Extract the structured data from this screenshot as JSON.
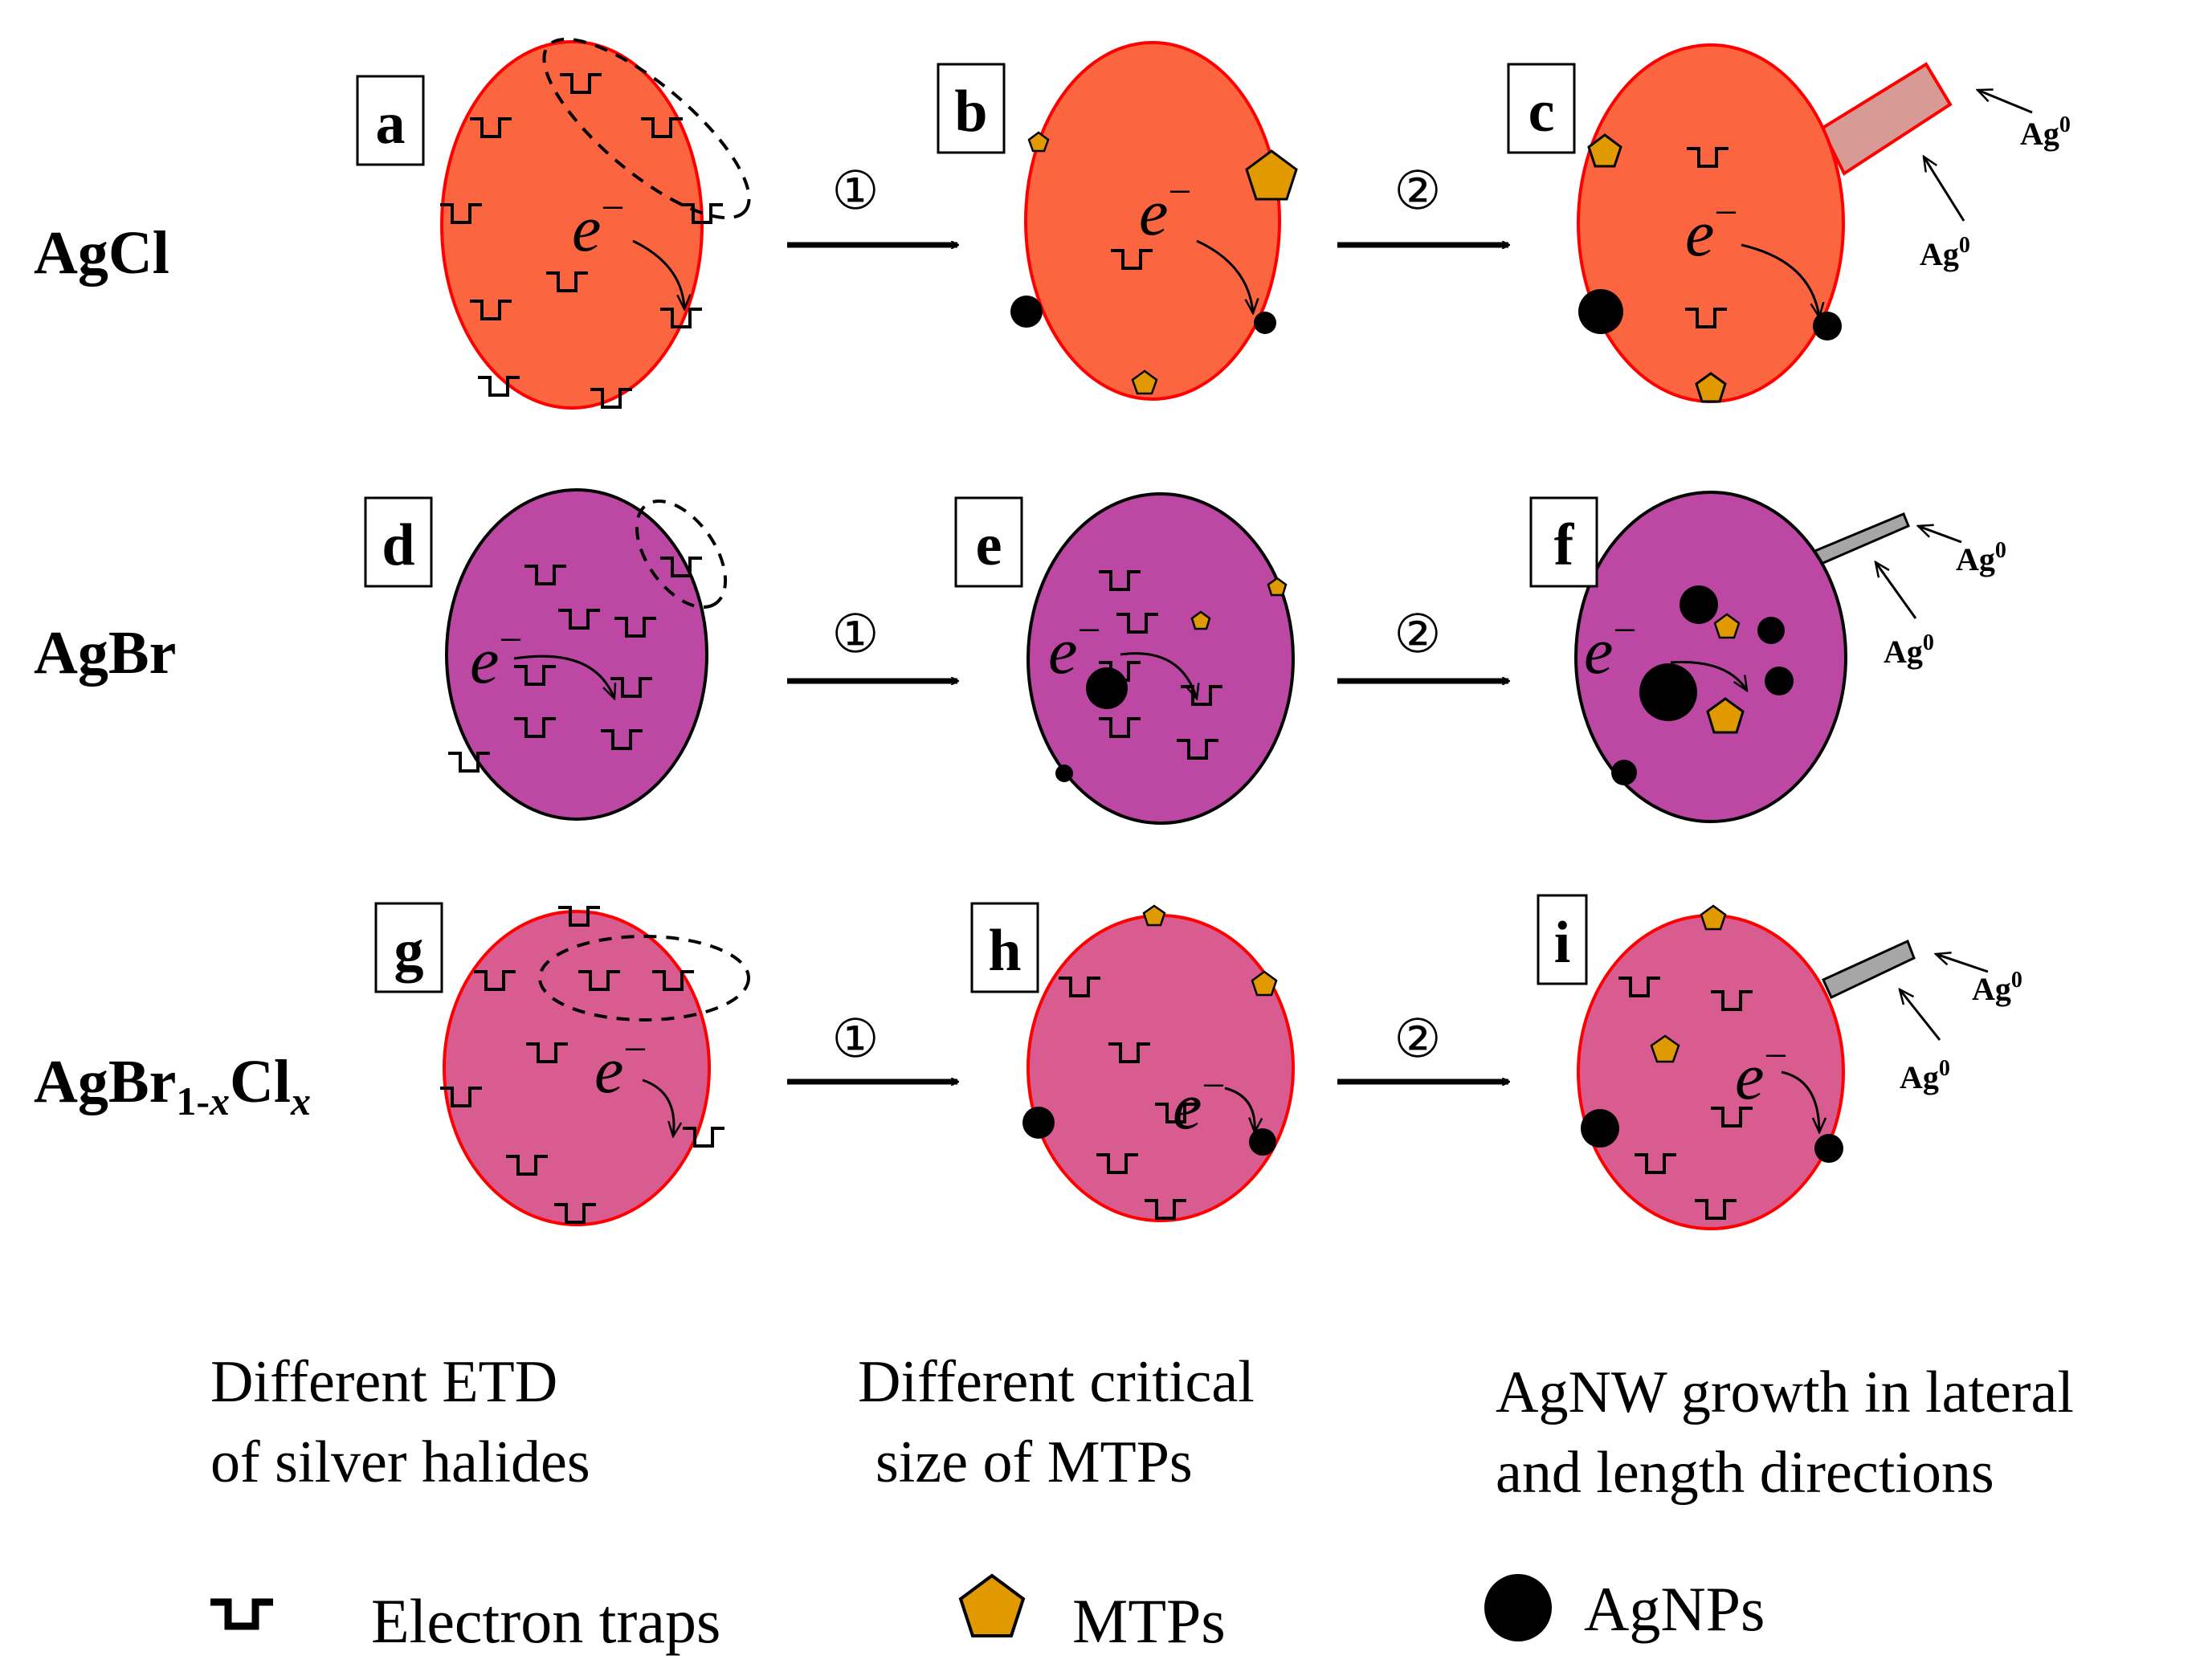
{
  "rows": [
    {
      "label": "AgCl",
      "panels": [
        "a",
        "b",
        "c"
      ]
    },
    {
      "label": "AgBr",
      "panels": [
        "d",
        "e",
        "f"
      ]
    },
    {
      "label_main": "AgBr",
      "label_sub1": "1-",
      "label_sub1_var": "x",
      "label_mid": "Cl",
      "label_sub2_var": "x",
      "panels": [
        "g",
        "h",
        "i"
      ]
    }
  ],
  "steps": {
    "step1": "①",
    "step2": "②"
  },
  "electron": {
    "symbol": "e",
    "charge": "−"
  },
  "silver_atom": {
    "symbol": "Ag",
    "superscript": "0"
  },
  "captions": {
    "col1": [
      "Different ETD",
      "of silver halides"
    ],
    "col2": [
      "Different critical",
      "size of MTPs"
    ],
    "col3": [
      "AgNW growth in lateral",
      "and length directions"
    ]
  },
  "legend": {
    "traps": "Electron traps",
    "mtps": "MTPs",
    "agnps": "AgNPs"
  },
  "colors": {
    "agcl_fill": "#fb6641",
    "agcl_stroke": "#ff0000",
    "agbr_fill": "#bc48a4",
    "agbr_stroke": "#000000",
    "mixed_fill": "#d85c90",
    "mixed_stroke": "#ff0000",
    "mtp_fill": "#e09a00",
    "agnw_agcl": "#d89a94",
    "agnw_other": "#a6a6a6"
  }
}
